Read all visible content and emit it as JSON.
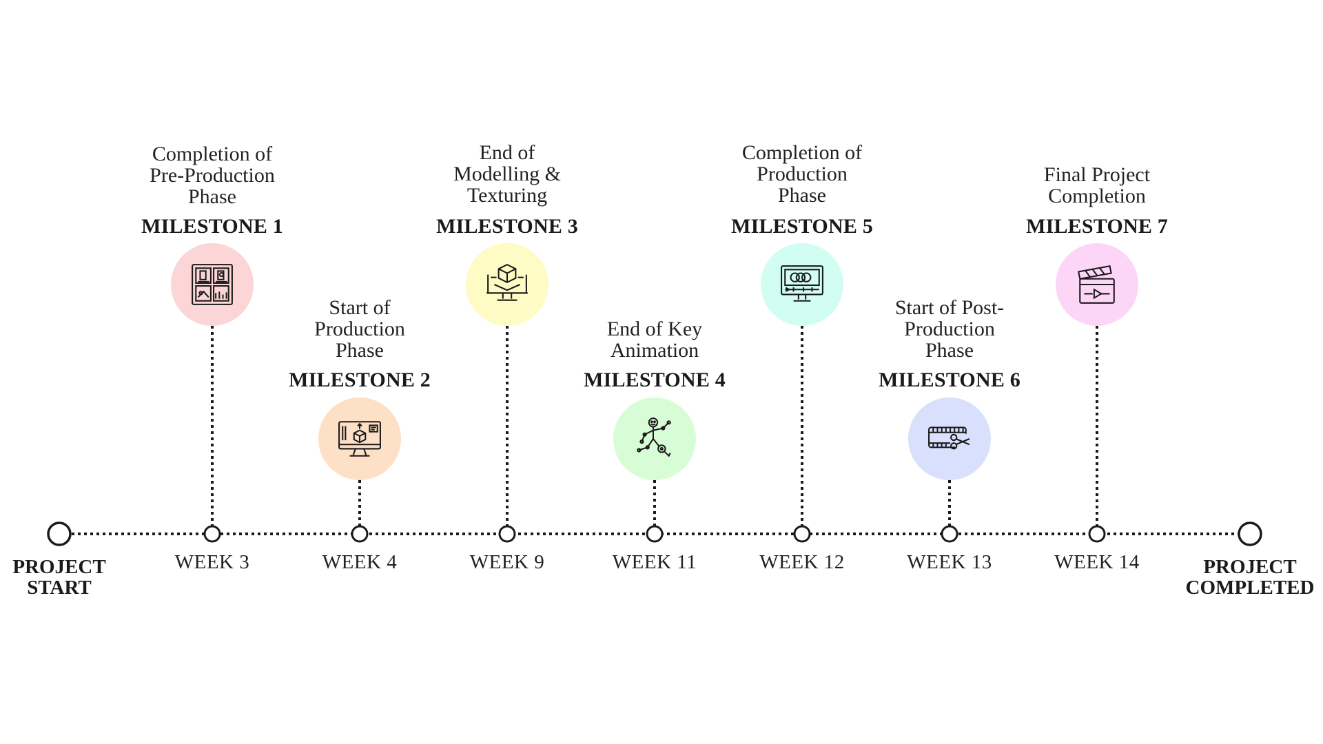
{
  "start_label": [
    "PROJECT",
    "START"
  ],
  "end_label": [
    "PROJECT",
    "COMPLETED"
  ],
  "milestones": [
    {
      "title": "MILESTONE 1",
      "desc": [
        "Completion of",
        "Pre-Production",
        "Phase"
      ],
      "week": "WEEK 3",
      "color": "#fcd6d6",
      "icon": "storyboard-icon",
      "tier": "top"
    },
    {
      "title": "MILESTONE 2",
      "desc": [
        "Start of",
        "Production",
        "Phase"
      ],
      "week": "WEEK 4",
      "color": "#fde0c5",
      "icon": "monitor-3d-icon",
      "tier": "bottom"
    },
    {
      "title": "MILESTONE 3",
      "desc": [
        "End of",
        "Modelling &",
        "Texturing"
      ],
      "week": "WEEK 9",
      "color": "#fefbc4",
      "icon": "3d-cube-monitor-icon",
      "tier": "top"
    },
    {
      "title": "MILESTONE 4",
      "desc": [
        "End of Key",
        "Animation"
      ],
      "week": "WEEK 11",
      "color": "#d8fdd6",
      "icon": "rigged-character-icon",
      "tier": "bottom"
    },
    {
      "title": "MILESTONE 5",
      "desc": [
        "Completion of",
        "Production",
        "Phase"
      ],
      "week": "WEEK 12",
      "color": "#d2fdf3",
      "icon": "video-editor-monitor-icon",
      "tier": "top"
    },
    {
      "title": "MILESTONE 6",
      "desc": [
        "Start of Post-",
        "Production",
        "Phase"
      ],
      "week": "WEEK 13",
      "color": "#d8e0fd",
      "icon": "film-cut-icon",
      "tier": "bottom"
    },
    {
      "title": "MILESTONE 7",
      "desc": [
        "Final Project",
        "Completion"
      ],
      "week": "WEEK 14",
      "color": "#fdd6f7",
      "icon": "clapperboard-icon",
      "tier": "top"
    }
  ]
}
